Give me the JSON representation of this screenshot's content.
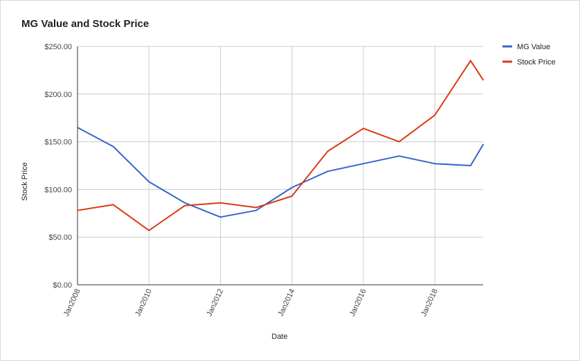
{
  "chart_data": {
    "type": "line",
    "title": "MG Value and Stock Price",
    "xlabel": "Date",
    "ylabel": "Stock Price",
    "x": [
      2008,
      2009,
      2010,
      2011,
      2012,
      2013,
      2014,
      2015,
      2016,
      2017,
      2018,
      2019,
      2019.35
    ],
    "x_tick_values": [
      2008,
      2010,
      2012,
      2014,
      2016,
      2018
    ],
    "x_tick_labels": [
      "Jan2008",
      "Jan2010",
      "Jan2012",
      "Jan2014",
      "Jan2016",
      "Jan2018"
    ],
    "xlim": [
      2008,
      2019.35
    ],
    "ylim": [
      0,
      250
    ],
    "y_ticks": [
      0,
      50,
      100,
      150,
      200,
      250
    ],
    "y_tick_labels": [
      "$0.00",
      "$50.00",
      "$100.00",
      "$150.00",
      "$200.00",
      "$250.00"
    ],
    "grid": true,
    "legend_position": "top-right",
    "series": [
      {
        "name": "MG Value",
        "color": "#3366cc",
        "values": [
          165,
          145,
          108,
          86,
          71,
          78,
          102,
          119,
          127,
          135,
          127,
          125,
          147
        ]
      },
      {
        "name": "Stock Price",
        "color": "#dc3912",
        "values": [
          78,
          84,
          57,
          83,
          86,
          81,
          93,
          140,
          164,
          150,
          178,
          235,
          215
        ]
      }
    ]
  }
}
